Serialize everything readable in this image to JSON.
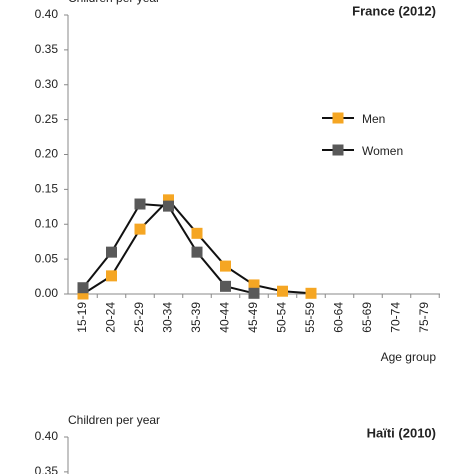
{
  "chart_data": [
    {
      "type": "line",
      "title": "France (2012)",
      "y_label": "Children per year",
      "x_label": "Age group",
      "categories": [
        "15-19",
        "20-24",
        "25-29",
        "30-34",
        "35-39",
        "40-44",
        "45-49",
        "50-54",
        "55-59",
        "60-64",
        "65-69",
        "70-74",
        "75-79"
      ],
      "series": [
        {
          "name": "Men",
          "color": "#f5a623",
          "values": [
            0.0,
            0.026,
            0.093,
            0.135,
            0.087,
            0.04,
            0.013,
            0.004,
            0.001,
            null,
            null,
            null,
            null
          ]
        },
        {
          "name": "Women",
          "color": "#595959",
          "values": [
            0.009,
            0.06,
            0.129,
            0.126,
            0.06,
            0.011,
            0.001,
            null,
            null,
            null,
            null,
            null,
            null
          ]
        }
      ],
      "ylim": [
        0,
        0.4
      ],
      "yticks": [
        {
          "value": 0,
          "label": "0.00"
        },
        {
          "value": 0.05,
          "label": "0.05"
        },
        {
          "value": 0.1,
          "label": "0.10"
        },
        {
          "value": 0.15,
          "label": "0.15"
        },
        {
          "value": 0.2,
          "label": "0.20"
        },
        {
          "value": 0.25,
          "label": "0.25"
        },
        {
          "value": 0.3,
          "label": "0.30"
        },
        {
          "value": 0.35,
          "label": "0.35"
        },
        {
          "value": 0.4,
          "label": "0.40"
        }
      ]
    },
    {
      "type": "line",
      "title": "Haïti (2010)",
      "y_label": "Children per year",
      "ylim": [
        0,
        0.4
      ],
      "yticks": [
        {
          "value": 0.35,
          "label": "0.35"
        },
        {
          "value": 0.4,
          "label": "0.40"
        }
      ]
    }
  ]
}
